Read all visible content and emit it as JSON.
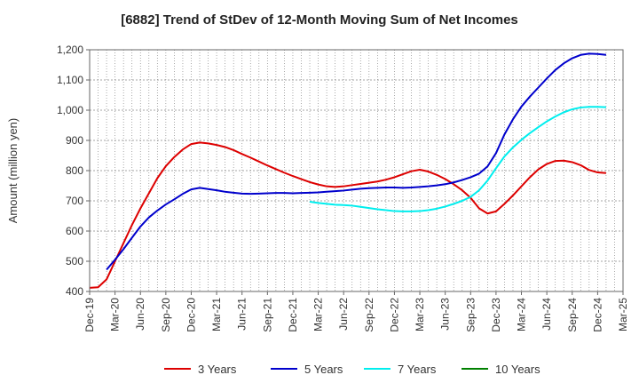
{
  "chart_data": {
    "type": "line",
    "title": "[6882]  Trend of StDev of 12-Month Moving Sum of Net Incomes",
    "ylabel": "Amount (million yen)",
    "xlabel": "",
    "ylim": [
      400,
      1200
    ],
    "yticks": [
      400,
      500,
      600,
      700,
      800,
      900,
      1000,
      1100,
      1200
    ],
    "ytick_labels": [
      "400",
      "500",
      "600",
      "700",
      "800",
      "900",
      "1,000",
      "1,100",
      "1,200"
    ],
    "xtick_labels": [
      "Dec-19",
      "Mar-20",
      "Jun-20",
      "Sep-20",
      "Dec-20",
      "Mar-21",
      "Jun-21",
      "Sep-21",
      "Dec-21",
      "Mar-22",
      "Jun-22",
      "Sep-22",
      "Dec-22",
      "Mar-23",
      "Jun-23",
      "Sep-23",
      "Dec-23",
      "Mar-24",
      "Jun-24",
      "Sep-24",
      "Dec-24",
      "Mar-25"
    ],
    "grid": true,
    "legend_position": "bottom",
    "series": [
      {
        "name": "3 Years",
        "color": "#dd0000",
        "points": [
          [
            "Dec-19",
            412
          ],
          [
            "Jan-20",
            414
          ],
          [
            "Feb-20",
            440
          ],
          [
            "Mar-20",
            500
          ],
          [
            "Apr-20",
            560
          ],
          [
            "May-20",
            620
          ],
          [
            "Jun-20",
            675
          ],
          [
            "Jul-20",
            725
          ],
          [
            "Aug-20",
            775
          ],
          [
            "Sep-20",
            815
          ],
          [
            "Oct-20",
            845
          ],
          [
            "Nov-20",
            870
          ],
          [
            "Dec-20",
            888
          ],
          [
            "Jan-21",
            893
          ],
          [
            "Feb-21",
            890
          ],
          [
            "Mar-21",
            885
          ],
          [
            "Apr-21",
            878
          ],
          [
            "May-21",
            868
          ],
          [
            "Jun-21",
            855
          ],
          [
            "Jul-21",
            843
          ],
          [
            "Aug-21",
            830
          ],
          [
            "Sep-21",
            817
          ],
          [
            "Oct-21",
            805
          ],
          [
            "Nov-21",
            793
          ],
          [
            "Dec-21",
            782
          ],
          [
            "Jan-22",
            772
          ],
          [
            "Feb-22",
            762
          ],
          [
            "Mar-22",
            754
          ],
          [
            "Apr-22",
            748
          ],
          [
            "May-22",
            746
          ],
          [
            "Jun-22",
            748
          ],
          [
            "Jul-22",
            752
          ],
          [
            "Aug-22",
            756
          ],
          [
            "Sep-22",
            760
          ],
          [
            "Oct-22",
            764
          ],
          [
            "Nov-22",
            770
          ],
          [
            "Dec-22",
            778
          ],
          [
            "Jan-23",
            788
          ],
          [
            "Feb-23",
            798
          ],
          [
            "Mar-23",
            803
          ],
          [
            "Apr-23",
            797
          ],
          [
            "May-23",
            786
          ],
          [
            "Jun-23",
            772
          ],
          [
            "Jul-23",
            755
          ],
          [
            "Aug-23",
            735
          ],
          [
            "Sep-23",
            710
          ],
          [
            "Oct-23",
            675
          ],
          [
            "Nov-23",
            658
          ],
          [
            "Dec-23",
            665
          ],
          [
            "Jan-24",
            690
          ],
          [
            "Feb-24",
            718
          ],
          [
            "Mar-24",
            748
          ],
          [
            "Apr-24",
            778
          ],
          [
            "May-24",
            804
          ],
          [
            "Jun-24",
            822
          ],
          [
            "Jul-24",
            832
          ],
          [
            "Aug-24",
            833
          ],
          [
            "Sep-24",
            828
          ],
          [
            "Oct-24",
            818
          ],
          [
            "Nov-24",
            802
          ],
          [
            "Dec-24",
            794
          ],
          [
            "Jan-25",
            792
          ]
        ]
      },
      {
        "name": "5 Years",
        "color": "#0000cc",
        "points": [
          [
            "Feb-20",
            472
          ],
          [
            "Mar-20",
            505
          ],
          [
            "Apr-20",
            540
          ],
          [
            "May-20",
            578
          ],
          [
            "Jun-20",
            615
          ],
          [
            "Jul-20",
            645
          ],
          [
            "Aug-20",
            668
          ],
          [
            "Sep-20",
            688
          ],
          [
            "Oct-20",
            705
          ],
          [
            "Nov-20",
            723
          ],
          [
            "Dec-20",
            738
          ],
          [
            "Jan-21",
            743
          ],
          [
            "Feb-21",
            739
          ],
          [
            "Mar-21",
            735
          ],
          [
            "Apr-21",
            730
          ],
          [
            "May-21",
            727
          ],
          [
            "Jun-21",
            724
          ],
          [
            "Jul-21",
            723
          ],
          [
            "Aug-21",
            724
          ],
          [
            "Sep-21",
            725
          ],
          [
            "Oct-21",
            726
          ],
          [
            "Nov-21",
            726
          ],
          [
            "Dec-21",
            725
          ],
          [
            "Jan-22",
            726
          ],
          [
            "Feb-22",
            727
          ],
          [
            "Mar-22",
            728
          ],
          [
            "Apr-22",
            730
          ],
          [
            "May-22",
            732
          ],
          [
            "Jun-22",
            734
          ],
          [
            "Jul-22",
            737
          ],
          [
            "Aug-22",
            740
          ],
          [
            "Sep-22",
            742
          ],
          [
            "Oct-22",
            743
          ],
          [
            "Nov-22",
            744
          ],
          [
            "Dec-22",
            744
          ],
          [
            "Jan-23",
            743
          ],
          [
            "Feb-23",
            744
          ],
          [
            "Mar-23",
            746
          ],
          [
            "Apr-23",
            748
          ],
          [
            "May-23",
            751
          ],
          [
            "Jun-23",
            755
          ],
          [
            "Jul-23",
            761
          ],
          [
            "Aug-23",
            769
          ],
          [
            "Sep-23",
            778
          ],
          [
            "Oct-23",
            790
          ],
          [
            "Nov-23",
            814
          ],
          [
            "Dec-23",
            858
          ],
          [
            "Jan-24",
            920
          ],
          [
            "Feb-24",
            970
          ],
          [
            "Mar-24",
            1012
          ],
          [
            "Apr-24",
            1045
          ],
          [
            "May-24",
            1075
          ],
          [
            "Jun-24",
            1105
          ],
          [
            "Jul-24",
            1133
          ],
          [
            "Aug-24",
            1155
          ],
          [
            "Sep-24",
            1172
          ],
          [
            "Oct-24",
            1183
          ],
          [
            "Nov-24",
            1187
          ],
          [
            "Dec-24",
            1186
          ],
          [
            "Jan-25",
            1183
          ]
        ]
      },
      {
        "name": "7 Years",
        "color": "#00eeee",
        "points": [
          [
            "Feb-22",
            697
          ],
          [
            "Mar-22",
            693
          ],
          [
            "Apr-22",
            690
          ],
          [
            "May-22",
            687
          ],
          [
            "Jun-22",
            686
          ],
          [
            "Jul-22",
            684
          ],
          [
            "Aug-22",
            680
          ],
          [
            "Sep-22",
            676
          ],
          [
            "Oct-22",
            672
          ],
          [
            "Nov-22",
            669
          ],
          [
            "Dec-22",
            666
          ],
          [
            "Jan-23",
            665
          ],
          [
            "Feb-23",
            665
          ],
          [
            "Mar-23",
            666
          ],
          [
            "Apr-23",
            669
          ],
          [
            "May-23",
            674
          ],
          [
            "Jun-23",
            681
          ],
          [
            "Jul-23",
            690
          ],
          [
            "Aug-23",
            700
          ],
          [
            "Sep-23",
            713
          ],
          [
            "Oct-23",
            735
          ],
          [
            "Nov-23",
            767
          ],
          [
            "Dec-23",
            808
          ],
          [
            "Jan-24",
            847
          ],
          [
            "Feb-24",
            877
          ],
          [
            "Mar-24",
            902
          ],
          [
            "Apr-24",
            924
          ],
          [
            "May-24",
            944
          ],
          [
            "Jun-24",
            963
          ],
          [
            "Jul-24",
            979
          ],
          [
            "Aug-24",
            993
          ],
          [
            "Sep-24",
            1003
          ],
          [
            "Oct-24",
            1009
          ],
          [
            "Nov-24",
            1011
          ],
          [
            "Dec-24",
            1011
          ],
          [
            "Jan-25",
            1010
          ]
        ]
      },
      {
        "name": "10 Years",
        "color": "#008000",
        "points": []
      }
    ]
  }
}
